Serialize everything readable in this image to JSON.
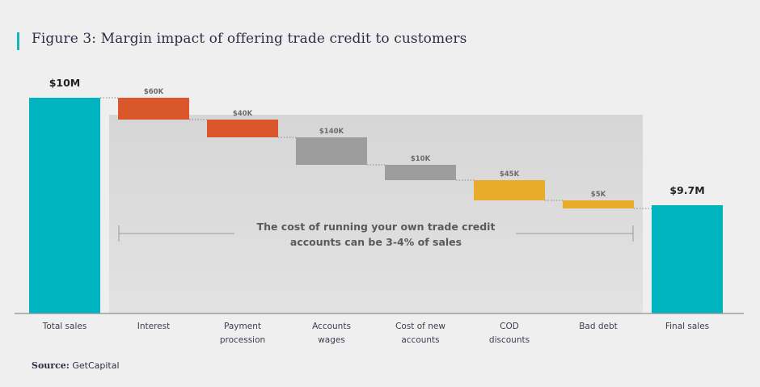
{
  "title": "Figure 3: Margin impact of offering trade credit to customers",
  "source": {
    "label": "Source:",
    "value": "GetCapital"
  },
  "annotation": "The cost of running your own trade credit accounts can be 3-4% of sales",
  "colors": {
    "total": "#00b5c0",
    "red": "#d9572b",
    "gray": "#9d9d9d",
    "orange": "#e8ab2a",
    "accent": "#19b3bd",
    "text": "#2b2f45"
  },
  "chart_data": {
    "type": "bar",
    "subtype": "waterfall",
    "categories": [
      "Total sales",
      "Interest",
      "Payment procession",
      "Accounts wages",
      "Cost of new accounts",
      "COD discounts",
      "Bad debt",
      "Final sales"
    ],
    "category_lines": [
      [
        "Total sales"
      ],
      [
        "Interest"
      ],
      [
        "Payment",
        "procession"
      ],
      [
        "Accounts",
        "wages"
      ],
      [
        "Cost of new",
        "accounts"
      ],
      [
        "COD",
        "discounts"
      ],
      [
        "Bad debt"
      ],
      [
        "Final sales"
      ]
    ],
    "values": [
      10000000,
      -60000,
      -40000,
      -140000,
      -10000,
      -45000,
      -5000,
      9700000
    ],
    "data_labels": [
      "$10M",
      "$60K",
      "$40K",
      "$140K",
      "$10K",
      "$45K",
      "$5K",
      "$9.7M"
    ],
    "bar_kind": [
      "total",
      "red",
      "red",
      "gray",
      "gray",
      "orange",
      "orange",
      "total"
    ],
    "xlabel": "",
    "ylabel": "",
    "grid": false,
    "legend": "none"
  }
}
